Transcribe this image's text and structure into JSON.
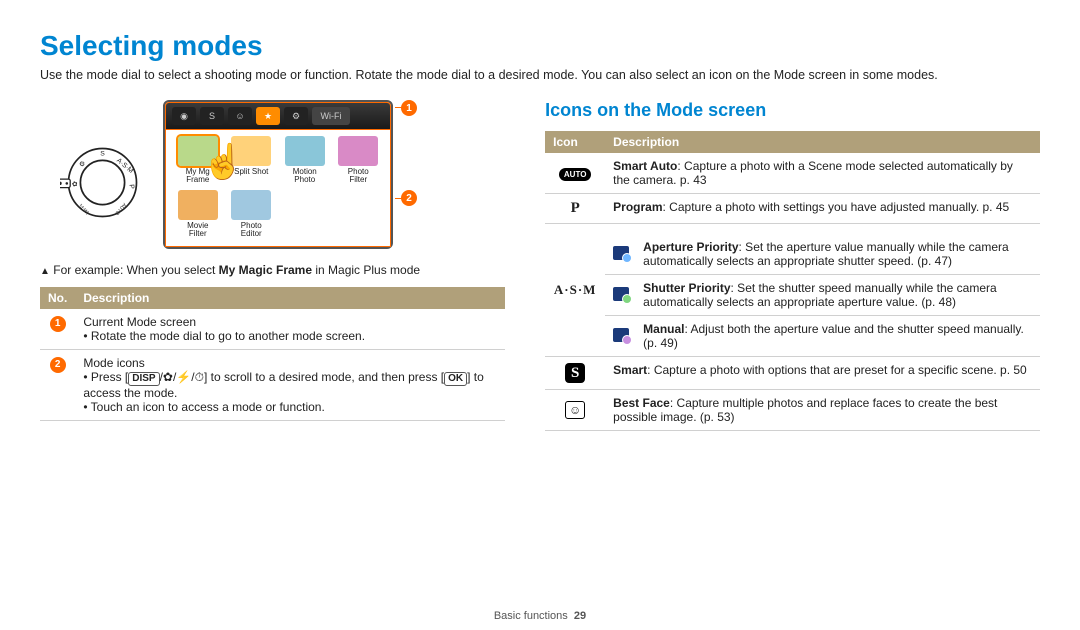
{
  "page": {
    "title": "Selecting modes",
    "intro": "Use the mode dial to select a shooting mode or function. Rotate the mode dial to a desired mode. You can also select an icon on the Mode screen in some modes.",
    "footer_section": "Basic functions",
    "footer_page": "29"
  },
  "screen": {
    "wifi": "Wi-Fi",
    "icons": [
      {
        "label": "My Magic Frame",
        "short": "My Mg\nFrame",
        "color": "#b9d98a",
        "selected": true
      },
      {
        "label": "Split Shot",
        "short": "Split Shot",
        "color": "#ffd27a"
      },
      {
        "label": "Motion Photo",
        "short": "Motion\nPhoto",
        "color": "#8ac6d9"
      },
      {
        "label": "Photo Filter",
        "short": "Photo\nFilter",
        "color": "#d98ac6"
      },
      {
        "label": "Movie Filter",
        "short": "Movie\nFilter",
        "color": "#f0b060"
      },
      {
        "label": "Photo Editor",
        "short": "Photo\nEditor",
        "color": "#a0c8e0"
      }
    ]
  },
  "caption": {
    "prefix": "For example: When you select ",
    "bold": "My Magic Frame",
    "suffix": " in Magic Plus mode"
  },
  "table1": {
    "headers": {
      "no": "No.",
      "desc": "Description"
    },
    "rows": [
      {
        "num": "1",
        "title": "Current Mode screen",
        "bullets": [
          "Rotate the mode dial to go to another mode screen."
        ]
      },
      {
        "num": "2",
        "title": "Mode icons",
        "bullets_raw": [
          {
            "type": "press"
          },
          {
            "type": "plain",
            "text": "Touch an icon to access a mode or function."
          }
        ]
      }
    ],
    "press_parts": {
      "pre": "Press [",
      "disp": "DISP",
      "mid_a": "/",
      "mac": "✿",
      "mid_b": "/",
      "flash": "⚡",
      "mid_c": "/",
      "timer": "⏱",
      "post": "] to scroll to a desired mode, and then press [",
      "ok": "OK",
      "end": "] to access the mode."
    }
  },
  "section2_title": "Icons on the Mode screen",
  "table2": {
    "headers": {
      "icon": "Icon",
      "desc": "Description"
    },
    "rows": [
      {
        "icon_key": "auto",
        "icon_text": "AUTO",
        "desc_b": "Smart Auto",
        "desc_rest": ": Capture a photo with a Scene mode selected automatically by the camera. p. 43"
      },
      {
        "icon_key": "p",
        "icon_text": "P",
        "desc_b": "Program",
        "desc_rest": ": Capture a photo with settings you have adjusted manually. p. 45"
      },
      {
        "icon_key": "asm",
        "icon_text": "A·S·M",
        "nested": [
          {
            "sub": "ap",
            "b": "Aperture Priority",
            "rest": ": Set the aperture value manually while the camera automatically selects an appropriate shutter speed. (p. 47)"
          },
          {
            "sub": "sp",
            "b": "Shutter Priority",
            "rest": ": Set the shutter speed manually while the camera automatically selects an appropriate aperture value. (p. 48)"
          },
          {
            "sub": "m",
            "b": "Manual",
            "rest": ": Adjust both the aperture value and the shutter speed manually. (p. 49)"
          }
        ]
      },
      {
        "icon_key": "smart",
        "icon_text": "S",
        "desc_b": "Smart",
        "desc_rest": ": Capture a photo with options that are preset for a specific scene. p. 50"
      },
      {
        "icon_key": "bestface",
        "icon_text": "🙂",
        "desc_b": "Best Face",
        "desc_rest": ": Capture multiple photos and replace faces to create the best possible image. (p. 53)"
      }
    ]
  }
}
